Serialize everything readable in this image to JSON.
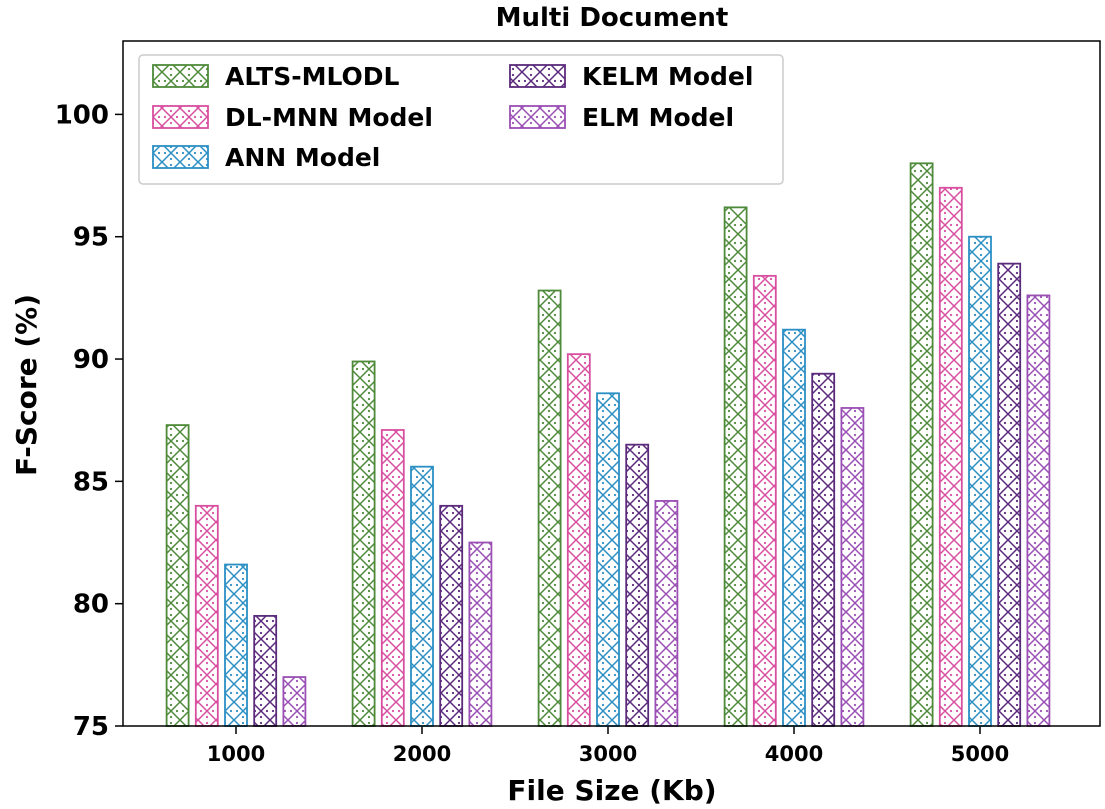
{
  "chart_data": {
    "type": "bar",
    "title": "Multi Document",
    "xlabel": "File Size (Kb)",
    "ylabel": "F-Score (%)",
    "ylim": [
      75,
      103
    ],
    "yticks": [
      "75",
      "80",
      "85",
      "90",
      "95",
      "100"
    ],
    "categories": [
      "1000",
      "2000",
      "3000",
      "4000",
      "5000"
    ],
    "grid": false,
    "legend_position": "top-left",
    "series": [
      {
        "name": "ALTS-MLODL",
        "color": "#4e8a3a",
        "values": [
          87.3,
          89.9,
          92.8,
          96.2,
          98.0
        ]
      },
      {
        "name": "DL-MNN Model",
        "color": "#d94fa0",
        "values": [
          84.0,
          87.1,
          90.2,
          93.4,
          97.0
        ]
      },
      {
        "name": "ANN Model",
        "color": "#2b8fc4",
        "values": [
          81.6,
          85.6,
          88.6,
          91.2,
          95.0
        ]
      },
      {
        "name": "KELM Model",
        "color": "#5b2a7c",
        "values": [
          79.5,
          84.0,
          86.5,
          89.4,
          93.9
        ]
      },
      {
        "name": "ELM Model",
        "color": "#9a4fb4",
        "values": [
          77.0,
          82.5,
          84.2,
          88.0,
          92.6
        ]
      }
    ]
  }
}
